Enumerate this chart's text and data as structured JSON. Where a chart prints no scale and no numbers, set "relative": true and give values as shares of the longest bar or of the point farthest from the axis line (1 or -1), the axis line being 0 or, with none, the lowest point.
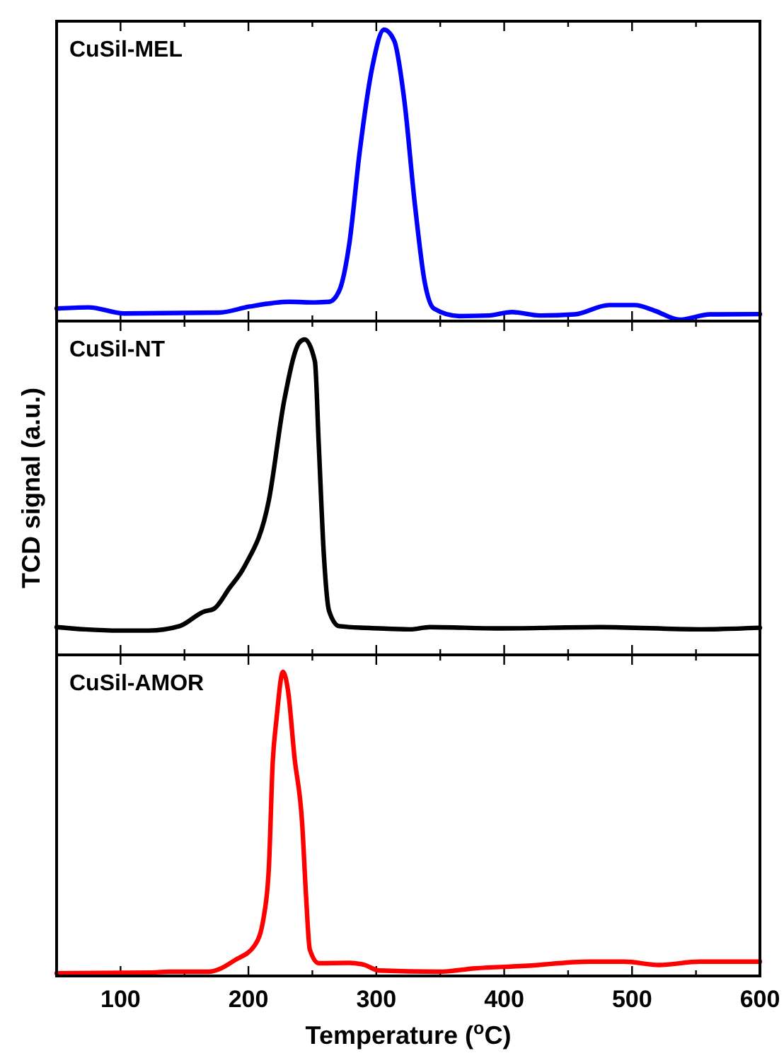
{
  "chart_data": [
    {
      "type": "line",
      "relative": true,
      "xlim": [
        50,
        600
      ],
      "xticks": [
        {
          "value": 100,
          "label": null
        },
        {
          "value": 150,
          "label": null
        },
        {
          "value": 200,
          "label": null
        },
        {
          "value": 250,
          "label": null
        },
        {
          "value": 300,
          "label": null
        },
        {
          "value": 350,
          "label": null
        },
        {
          "value": 400,
          "label": null
        },
        {
          "value": 450,
          "label": null
        },
        {
          "value": 500,
          "label": null
        },
        {
          "value": 550,
          "label": null
        },
        {
          "value": 600,
          "label": null
        }
      ],
      "tick_labels": false,
      "legend": "top left",
      "marker": "none",
      "series": [
        {
          "name": "CuSil-MEL",
          "color": "#0000ff",
          "x": [
            50,
            75,
            103,
            177,
            201,
            232,
            252,
            263,
            271,
            279,
            287,
            297,
            306,
            314,
            322,
            330,
            338,
            345,
            365,
            388,
            406,
            428,
            455,
            482,
            502,
            518,
            537,
            561,
            600
          ],
          "values": [
            0.043,
            0.047,
            0.026,
            0.029,
            0.05,
            0.066,
            0.064,
            0.066,
            0.104,
            0.269,
            0.581,
            0.875,
            1,
            0.962,
            0.754,
            0.407,
            0.13,
            0.043,
            0.017,
            0.019,
            0.031,
            0.019,
            0.023,
            0.055,
            0.055,
            0.035,
            0.005,
            0.023,
            0.024
          ]
        }
      ]
    },
    {
      "type": "line",
      "relative": true,
      "ylabel": "TCD signal (a.u.)",
      "xlim": [
        50,
        600
      ],
      "xticks": [
        {
          "value": 100,
          "label": null
        },
        {
          "value": 150,
          "label": null
        },
        {
          "value": 200,
          "label": null
        },
        {
          "value": 250,
          "label": null
        },
        {
          "value": 300,
          "label": null
        },
        {
          "value": 350,
          "label": null
        },
        {
          "value": 400,
          "label": null
        },
        {
          "value": 450,
          "label": null
        },
        {
          "value": 500,
          "label": null
        },
        {
          "value": 550,
          "label": null
        },
        {
          "value": 600,
          "label": null
        }
      ],
      "tick_labels": false,
      "legend": "top left",
      "marker": "none",
      "series": [
        {
          "name": "CuSil-NT",
          "color": "#000000",
          "x": [
            50,
            72,
            99,
            122,
            146,
            165,
            173,
            185,
            197,
            216,
            228,
            240,
            244,
            252,
            255,
            259,
            263,
            271,
            302,
            326,
            342,
            396,
            475,
            553,
            600
          ],
          "values": [
            0.088,
            0.081,
            0.077,
            0.077,
            0.091,
            0.137,
            0.146,
            0.211,
            0.281,
            0.491,
            0.807,
            0.991,
            1,
            0.93,
            0.667,
            0.316,
            0.14,
            0.091,
            0.084,
            0.081,
            0.088,
            0.084,
            0.088,
            0.081,
            0.086
          ]
        }
      ]
    },
    {
      "type": "line",
      "relative": true,
      "xlabel": "Temperature ($^{o}$C)",
      "xlim": [
        50,
        600
      ],
      "xticks": [
        100,
        {
          "value": 150,
          "label": null
        },
        200,
        {
          "value": 250,
          "label": null
        },
        300,
        {
          "value": 350,
          "label": null
        },
        400,
        {
          "value": 450,
          "label": null
        },
        500,
        {
          "value": 550,
          "label": null
        },
        600
      ],
      "tick_labels": "x",
      "legend": "top left",
      "marker": "none",
      "series": [
        {
          "name": "CuSil-AMOR",
          "color": "#ff0000",
          "x": [
            50,
            122,
            138,
            169,
            177,
            189,
            205,
            212,
            216,
            219,
            222,
            227,
            231,
            236,
            242,
            245,
            248,
            255,
            279,
            291,
            302,
            349,
            377,
            416,
            467,
            494,
            521,
            553,
            600
          ],
          "values": [
            0.009,
            0.011,
            0.014,
            0.014,
            0.022,
            0.051,
            0.101,
            0.195,
            0.358,
            0.702,
            0.846,
            1,
            0.937,
            0.72,
            0.503,
            0.268,
            0.087,
            0.042,
            0.043,
            0.036,
            0.018,
            0.014,
            0.025,
            0.033,
            0.047,
            0.047,
            0.036,
            0.047,
            0.047
          ]
        }
      ]
    }
  ]
}
